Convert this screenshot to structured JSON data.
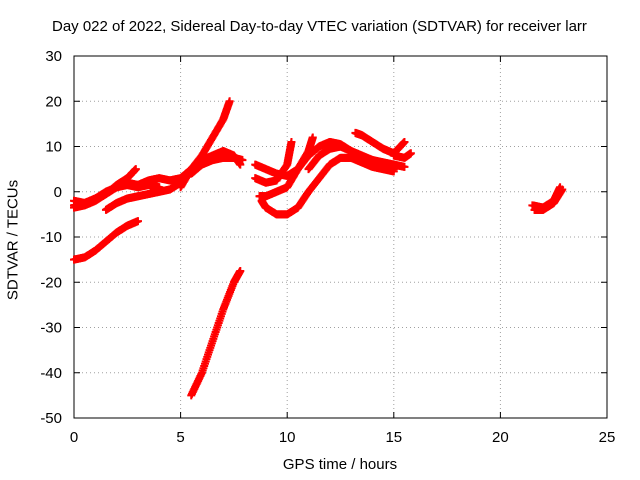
{
  "chart_data": {
    "type": "scatter",
    "title": "Day 022 of 2022, Sidereal Day-to-day VTEC variation (SDTVAR) for receiver larr",
    "xlabel": "GPS time / hours",
    "ylabel": "SDTVAR / TECUs",
    "xlim": [
      0,
      25
    ],
    "ylim": [
      -50,
      30
    ],
    "xticks": [
      "0",
      "5",
      "10",
      "15",
      "20",
      "25"
    ],
    "yticks": [
      "30",
      "20",
      "10",
      "0",
      "-10",
      "-20",
      "-30",
      "-40",
      "-50"
    ],
    "xtick_values": [
      0,
      5,
      10,
      15,
      20,
      25
    ],
    "ytick_values": [
      30,
      20,
      10,
      0,
      -10,
      -20,
      -30,
      -40,
      -50
    ],
    "grid": true,
    "marker": "plus",
    "color": "#ff0000",
    "series": [
      {
        "x": [
          0,
          0.5,
          1,
          1.5,
          2,
          2.5,
          3.0
        ],
        "y": [
          -15,
          -14.5,
          -13,
          -11,
          -9,
          -7.5,
          -6.5
        ]
      },
      {
        "x": [
          0,
          0.5,
          1,
          1.5,
          2,
          2.5,
          3,
          3.5,
          4,
          4.5,
          5,
          5.5,
          6,
          6.5,
          7,
          7.3
        ],
        "y": [
          -2,
          -2.5,
          -1.5,
          -0.5,
          1,
          2,
          1.5,
          2.5,
          3,
          2.5,
          3,
          5,
          8,
          12,
          16,
          20
        ]
      },
      {
        "x": [
          0,
          0.5,
          1,
          1.5,
          2,
          2.5,
          2.9
        ],
        "y": [
          -3.5,
          -3,
          -2,
          -0.5,
          1.5,
          3,
          5
        ]
      },
      {
        "x": [
          0,
          0.5,
          1,
          1.5,
          2,
          2.5,
          3,
          3.5,
          4
        ],
        "y": [
          -3,
          -2.5,
          -1.5,
          0,
          1,
          1.5,
          1,
          1.5,
          1
        ]
      },
      {
        "x": [
          1.5,
          2,
          2.5,
          3,
          3.5,
          4,
          4.5,
          5
        ],
        "y": [
          -4,
          -2.5,
          -1.5,
          -1,
          -0.5,
          0,
          0.5,
          2
        ]
      },
      {
        "x": [
          5,
          5.5,
          6,
          6.5,
          7,
          7.5,
          7.8
        ],
        "y": [
          1,
          5,
          7,
          8,
          9,
          8,
          6
        ]
      },
      {
        "x": [
          5.5,
          6,
          6.5,
          7,
          7.5,
          7.9
        ],
        "y": [
          4,
          6,
          7,
          7.5,
          7.5,
          7
        ]
      },
      {
        "x": [
          5.5,
          6,
          6.5,
          7,
          7.5,
          7.8
        ],
        "y": [
          -45,
          -40,
          -33,
          -26,
          -20,
          -17.5
        ]
      },
      {
        "x": [
          8.5,
          9,
          9.5,
          10,
          10.5,
          11,
          11.5,
          12,
          12.5,
          13,
          13.5,
          14,
          14.5,
          15,
          15.5
        ],
        "y": [
          6,
          5,
          4,
          3.5,
          5,
          8,
          10,
          11,
          10.5,
          9,
          7.5,
          7,
          6.5,
          6,
          5.5
        ]
      },
      {
        "x": [
          8.5,
          9,
          9.5,
          10,
          10.2
        ],
        "y": [
          3,
          2,
          2.5,
          6,
          11
        ]
      },
      {
        "x": [
          8.7,
          9,
          9.5,
          10,
          10.5,
          11,
          11.2
        ],
        "y": [
          -1,
          -1,
          0,
          1,
          5,
          9,
          12
        ]
      },
      {
        "x": [
          8.8,
          9,
          9.5,
          10,
          10.5,
          11,
          11.5,
          12,
          12.5,
          13,
          13.5,
          14,
          14.5,
          15
        ],
        "y": [
          -2,
          -3.5,
          -5,
          -5,
          -3.5,
          0,
          3,
          6,
          7.5,
          7.5,
          6.5,
          5.5,
          5,
          4.5
        ]
      },
      {
        "x": [
          11,
          11.5,
          12,
          12.5,
          13,
          13.5,
          14,
          14.5,
          15
        ],
        "y": [
          5,
          8,
          9.5,
          10,
          9,
          8,
          7,
          6,
          5
        ]
      },
      {
        "x": [
          13.2,
          13.5,
          14,
          14.5,
          15,
          15.5
        ],
        "y": [
          13,
          12.5,
          11,
          9.5,
          8.5,
          11
        ]
      },
      {
        "x": [
          15,
          15.5,
          15.8
        ],
        "y": [
          8,
          7.5,
          8.5
        ]
      },
      {
        "x": [
          21.5,
          22,
          22.5,
          22.8
        ],
        "y": [
          -3,
          -3.5,
          -2,
          1
        ]
      },
      {
        "x": [
          21.6,
          22,
          22.5,
          22.9
        ],
        "y": [
          -4,
          -4,
          -2.5,
          0.5
        ]
      }
    ]
  }
}
